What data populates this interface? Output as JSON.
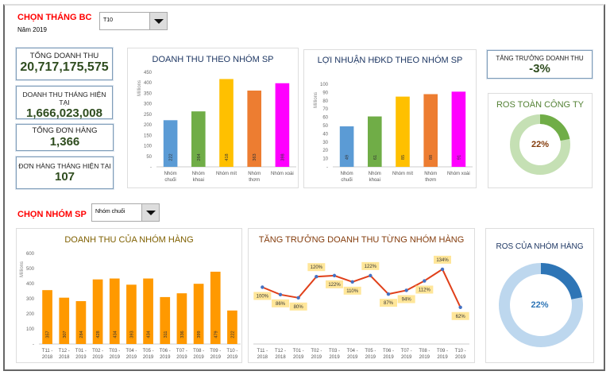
{
  "header": {
    "title": "CHỌN THÁNG BC",
    "year": "Năm 2019",
    "month_select": "T10"
  },
  "kpis": [
    {
      "label": "TỔNG DOANH THU",
      "value": "20,717,175,575"
    },
    {
      "label": "DOANH THU THÁNG HIỆN TẠI",
      "value": "1,666,023,008"
    },
    {
      "label": "TỔNG ĐƠN HÀNG",
      "value": "1,366"
    },
    {
      "label": "ĐƠN HÀNG THÁNG HIỆN TẠI",
      "value": "107"
    }
  ],
  "growth": {
    "label": "TĂNG TRƯỞNG DOANH THU",
    "value": "-3%"
  },
  "ros_company": {
    "title": "ROS TOÀN CÔNG TY",
    "value": "22%",
    "fraction": 0.22,
    "color": "#70ad47",
    "track": "#c5e0b4"
  },
  "group_select": {
    "label": "CHỌN NHÓM SP",
    "value": "Nhóm chuối"
  },
  "ros_group": {
    "title": "ROS CỦA NHÓM HÀNG",
    "value": "22%",
    "fraction": 0.22,
    "color": "#2e75b6",
    "track": "#bdd7ee"
  },
  "chart_data": [
    {
      "id": "rev",
      "type": "bar",
      "title": "DOANH THU THEO NHÓM SP",
      "ylabel": "Millions",
      "ylim": [
        0,
        450
      ],
      "yticks": [
        "-",
        "50",
        "100",
        "150",
        "200",
        "250",
        "300",
        "350",
        "400",
        "450"
      ],
      "categories": [
        "Nhóm chuối",
        "Nhóm khoai",
        "Nhóm mít",
        "Nhóm thơm",
        "Nhóm xoài"
      ],
      "values": [
        222,
        264,
        418,
        363,
        398
      ],
      "colors": [
        "#5b9bd5",
        "#70ad47",
        "#ffc000",
        "#ed7d31",
        "#ff00ff"
      ]
    },
    {
      "id": "profit",
      "type": "bar",
      "title": "LỢI NHUẬN HĐKD THEO NHÓM SP",
      "ylabel": "Millions",
      "ylim": [
        0,
        100
      ],
      "yticks": [
        "-",
        "10",
        "20",
        "30",
        "40",
        "50",
        "60",
        "70",
        "80",
        "90",
        "100"
      ],
      "categories": [
        "Nhóm chuối",
        "Nhóm khoai",
        "Nhóm mít",
        "Nhóm thơm",
        "Nhóm xoài"
      ],
      "values": [
        49,
        61,
        85,
        88,
        91
      ],
      "colors": [
        "#5b9bd5",
        "#70ad47",
        "#ffc000",
        "#ed7d31",
        "#ff00ff"
      ]
    },
    {
      "id": "grp",
      "type": "bar",
      "title": "DOANH THU CỦA NHÓM HÀNG",
      "ylabel": "Millions",
      "ylim": [
        0,
        600
      ],
      "yticks": [
        "-",
        "100",
        "200",
        "300",
        "400",
        "500",
        "600"
      ],
      "categories": [
        "T11 - 2018",
        "T12 - 2018",
        "T01 - 2019",
        "T02 - 2019",
        "T03 - 2019",
        "T04 - 2019",
        "T05 - 2019",
        "T06 - 2019",
        "T07 - 2019",
        "T08 - 2019",
        "T09 - 2019",
        "T10 - 2019"
      ],
      "values": [
        357,
        307,
        284,
        428,
        434,
        393,
        434,
        311,
        336,
        399,
        479,
        222
      ],
      "colors": [
        "#ff9900"
      ]
    },
    {
      "id": "growth",
      "type": "line",
      "title": "TĂNG TRƯỞNG DOANH THU TỪNG NHÓM HÀNG",
      "ylim": [
        0,
        200
      ],
      "categories": [
        "T11 - 2018",
        "T12 - 2018",
        "T01 - 2019",
        "T02 - 2019",
        "T03 - 2019",
        "T04 - 2019",
        "T05 - 2019",
        "T06 - 2019",
        "T07 - 2019",
        "T08 - 2019",
        "T09 - 2019",
        "T10 - 2019"
      ],
      "values": [
        100,
        86,
        80,
        120,
        122,
        110,
        122,
        87,
        94,
        112,
        134,
        62
      ],
      "labels": [
        "100%",
        "86%",
        "80%",
        "120%",
        "122%",
        "110%",
        "122%",
        "87%",
        "94%",
        "112%",
        "134%",
        "62%"
      ],
      "color": "#e0401a"
    }
  ]
}
